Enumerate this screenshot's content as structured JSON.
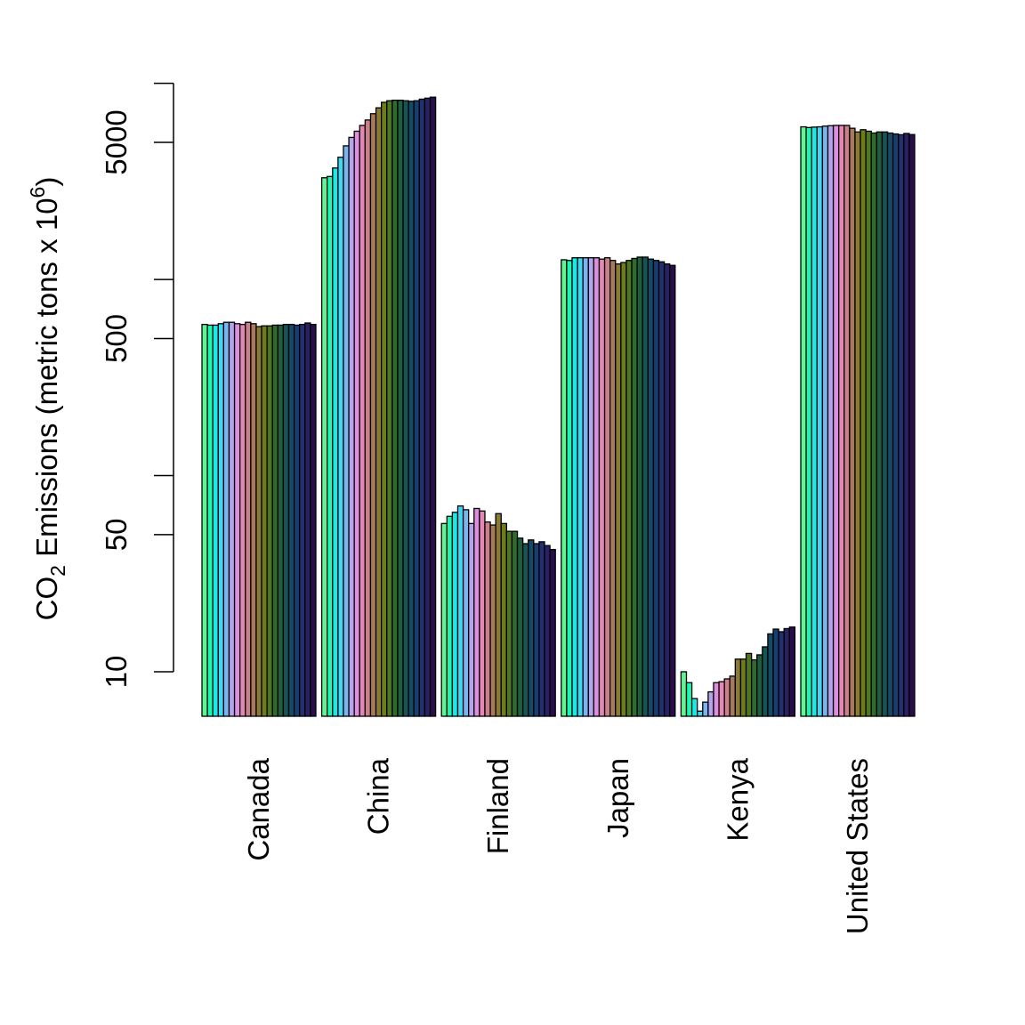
{
  "chart_data": {
    "type": "bar",
    "y_axis": {
      "scale": "log",
      "ticks": [
        10,
        50,
        500,
        5000
      ],
      "tick_labels": [
        "10",
        "50",
        "500",
        "5000"
      ],
      "minor_ticks": [
        100,
        1000,
        10000
      ]
    },
    "ylabel": {
      "parts": [
        "CO",
        "2",
        " Emissions (metric tons x 10",
        "6",
        ")"
      ]
    },
    "categories": [
      "Canada",
      "China",
      "Finland",
      "Japan",
      "Kenya",
      "United States"
    ],
    "groups": [
      {
        "name": "Canada",
        "values": [
          590,
          585,
          585,
          595,
          605,
          605,
          595,
          590,
          605,
          595,
          575,
          580,
          580,
          585,
          585,
          590,
          590,
          585,
          590,
          600,
          590
        ]
      },
      {
        "name": "China",
        "values": [
          3300,
          3350,
          3700,
          4200,
          4800,
          5300,
          5700,
          6100,
          6500,
          7000,
          7500,
          8000,
          8150,
          8200,
          8200,
          8150,
          8100,
          8150,
          8300,
          8400,
          8500
        ]
      },
      {
        "name": "Finland",
        "values": [
          57,
          62,
          65,
          70,
          67,
          57,
          68,
          66,
          58,
          56,
          64,
          57,
          52,
          52,
          48,
          45,
          47,
          45,
          46,
          44,
          42
        ]
      },
      {
        "name": "Japan",
        "values": [
          1260,
          1250,
          1290,
          1290,
          1290,
          1290,
          1290,
          1270,
          1290,
          1250,
          1200,
          1220,
          1250,
          1280,
          1300,
          1300,
          1270,
          1250,
          1230,
          1200,
          1180
        ]
      },
      {
        "name": "Kenya",
        "values": [
          10,
          8.8,
          7.3,
          6.3,
          7.0,
          7.9,
          8.8,
          8.9,
          9.2,
          9.5,
          11.6,
          11.6,
          12.4,
          11.5,
          12.2,
          13.4,
          15.6,
          16.5,
          16.0,
          16.6,
          16.9
        ]
      },
      {
        "name": "United States",
        "values": [
          6000,
          5950,
          5980,
          6000,
          6050,
          6080,
          6100,
          6100,
          6100,
          5900,
          5650,
          5800,
          5700,
          5580,
          5650,
          5650,
          5580,
          5520,
          5470,
          5550,
          5480
        ]
      }
    ],
    "colors": [
      "#5ff592",
      "#19f7b2",
      "#1ae9e9",
      "#42d6f3",
      "#7ab5f2",
      "#b3a4ec",
      "#dd8edf",
      "#e586b7",
      "#cb7f88",
      "#a7795d",
      "#8a7a34",
      "#6f7d18",
      "#4d7721",
      "#2e6b2c",
      "#1c5e3e",
      "#175455",
      "#154a67",
      "#183d70",
      "#223070",
      "#2a2164",
      "#2a0e4c"
    ]
  }
}
